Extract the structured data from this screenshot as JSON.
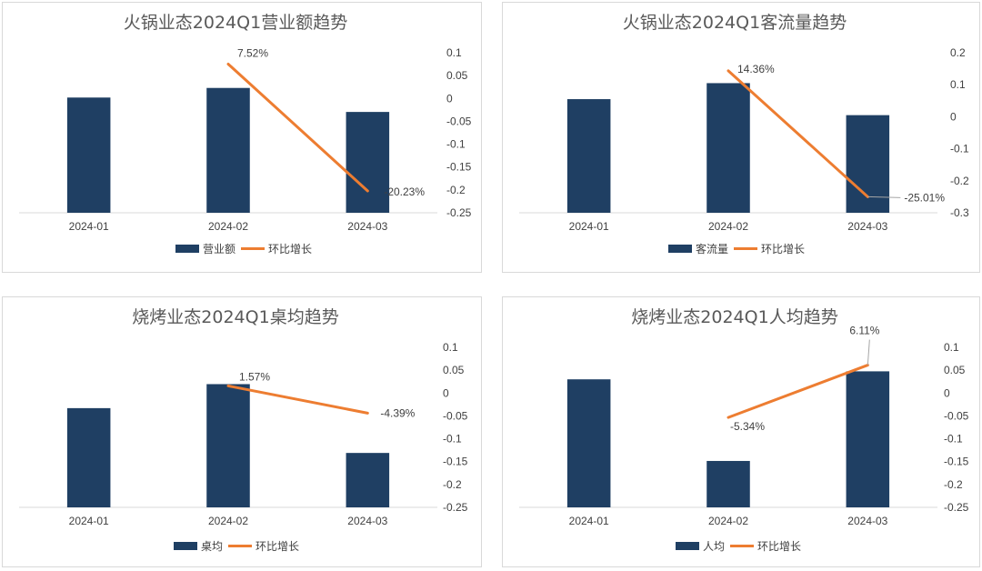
{
  "colors": {
    "bar": "#1f3f63",
    "line": "#ed7d31",
    "axis": "#d9d9d9",
    "leader": "#a6a6a6"
  },
  "chart_data": [
    {
      "type": "bar",
      "title": "火锅业态2024Q1营业额趋势",
      "categories": [
        "2024-01",
        "2024-02",
        "2024-03"
      ],
      "series": [
        {
          "name": "营业额",
          "type": "bar",
          "values": [
            0.72,
            0.78,
            0.63
          ]
        },
        {
          "name": "环比增长",
          "type": "line",
          "axis": "right",
          "values": [
            null,
            0.0752,
            -0.2023
          ],
          "labels": [
            "",
            "7.52%",
            "-20.23%"
          ]
        }
      ],
      "y2_ticks": [
        "0.1",
        "0.05",
        "0",
        "-0.05",
        "-0.1",
        "-0.15",
        "-0.2",
        "-0.25"
      ],
      "y2lim": [
        -0.25,
        0.1
      ],
      "legend": "bottom"
    },
    {
      "type": "bar",
      "title": "火锅业态2024Q1客流量趋势",
      "categories": [
        "2024-01",
        "2024-02",
        "2024-03"
      ],
      "series": [
        {
          "name": "客流量",
          "type": "bar",
          "values": [
            0.71,
            0.81,
            0.61
          ]
        },
        {
          "name": "环比增长",
          "type": "line",
          "axis": "right",
          "values": [
            null,
            0.1436,
            -0.2501
          ],
          "labels": [
            "",
            "14.36%",
            "-25.01%"
          ]
        }
      ],
      "y2_ticks": [
        "0.2",
        "0.1",
        "0",
        "-0.1",
        "-0.2",
        "-0.3"
      ],
      "y2lim": [
        -0.3,
        0.2
      ],
      "legend": "bottom"
    },
    {
      "type": "bar",
      "title": "烧烤业态2024Q1桌均趋势",
      "categories": [
        "2024-01",
        "2024-02",
        "2024-03"
      ],
      "series": [
        {
          "name": "桌均",
          "type": "bar",
          "values": [
            0.62,
            0.77,
            0.34
          ]
        },
        {
          "name": "环比增长",
          "type": "line",
          "axis": "right",
          "values": [
            null,
            0.0157,
            -0.0439
          ],
          "labels": [
            "",
            "1.57%",
            "-4.39%"
          ]
        }
      ],
      "y2_ticks": [
        "0.1",
        "0.05",
        "0",
        "-0.05",
        "-0.1",
        "-0.15",
        "-0.2",
        "-0.25"
      ],
      "y2lim": [
        -0.25,
        0.1
      ],
      "legend": "bottom"
    },
    {
      "type": "bar",
      "title": "烧烤业态2024Q1人均趋势",
      "categories": [
        "2024-01",
        "2024-02",
        "2024-03"
      ],
      "series": [
        {
          "name": "人均",
          "type": "bar",
          "values": [
            0.8,
            0.29,
            0.85
          ]
        },
        {
          "name": "环比增长",
          "type": "line",
          "axis": "right",
          "values": [
            null,
            -0.0534,
            0.0611
          ],
          "labels": [
            "",
            "-5.34%",
            "6.11%"
          ]
        }
      ],
      "y2_ticks": [
        "0.1",
        "0.05",
        "0",
        "-0.05",
        "-0.1",
        "-0.15",
        "-0.2",
        "-0.25"
      ],
      "y2lim": [
        -0.25,
        0.1
      ],
      "legend": "bottom"
    }
  ]
}
